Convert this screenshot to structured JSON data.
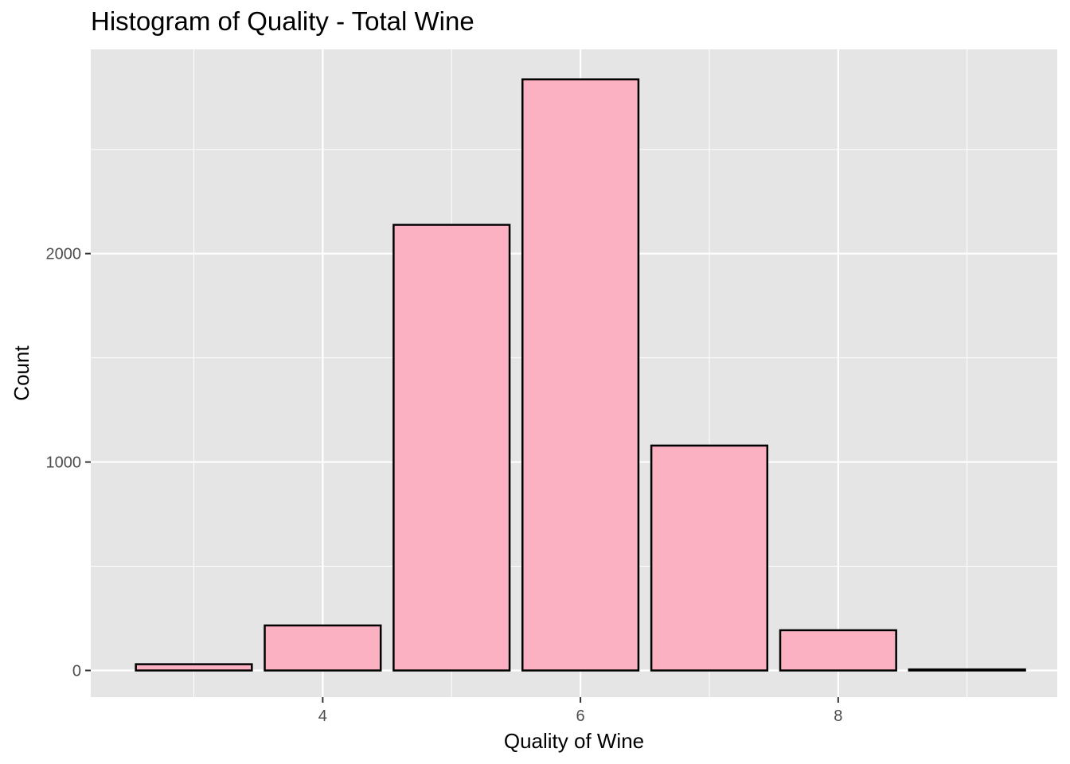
{
  "chart_data": {
    "type": "bar",
    "title": "Histogram of Quality - Total Wine",
    "xlabel": "Quality of Wine",
    "ylabel": "Count",
    "categories": [
      3,
      4,
      5,
      6,
      7,
      8,
      9
    ],
    "values": [
      30,
      216,
      2138,
      2836,
      1079,
      193,
      5
    ],
    "xlim": [
      2.2,
      9.7
    ],
    "ylim": [
      -128,
      2980
    ],
    "x_ticks": [
      4,
      6,
      8
    ],
    "y_ticks": [
      0,
      1000,
      2000
    ],
    "grid": true,
    "colors": {
      "panel": "#e5e5e5",
      "grid": "#ffffff",
      "bar_fill": "#fcb1c3",
      "bar_stroke": "#000000",
      "tick_text": "#4d4d4d"
    }
  }
}
